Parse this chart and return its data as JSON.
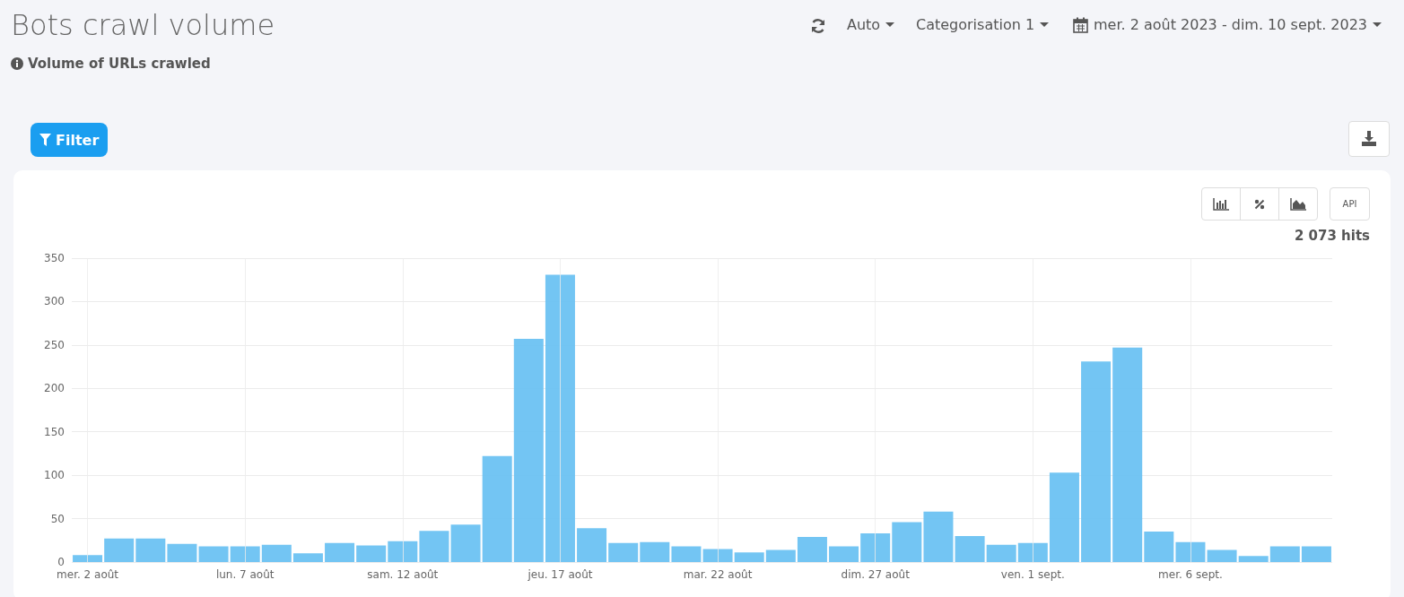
{
  "chart_data": {
    "type": "bar",
    "title": "Bots crawl volume",
    "subtitle": "Volume of URLs crawled",
    "annotations": [
      "Auto",
      "Categorisation 1",
      "mer. 2 août 2023 - dim. 10 sept. 2023",
      "Filter",
      "API",
      "2 073 hits"
    ],
    "categories": [
      "mer. 2 août",
      null,
      null,
      null,
      null,
      "lun. 7 août",
      null,
      null,
      null,
      null,
      "sam. 12 août",
      null,
      null,
      null,
      null,
      "jeu. 17 août",
      null,
      null,
      null,
      null,
      "mar. 22 août",
      null,
      null,
      null,
      null,
      "dim. 27 août",
      null,
      null,
      null,
      null,
      "ven. 1 sept.",
      null,
      null,
      null,
      null,
      "mer. 6 sept.",
      null,
      null,
      null,
      null
    ],
    "values": [
      8,
      27,
      27,
      21,
      18,
      18,
      20,
      10,
      22,
      19,
      24,
      36,
      43,
      122,
      257,
      331,
      39,
      22,
      23,
      18,
      15,
      11,
      14,
      29,
      18,
      33,
      46,
      58,
      30,
      20,
      22,
      103,
      231,
      247,
      35,
      23,
      14,
      7,
      18,
      18
    ],
    "color": "#6cc2f2",
    "ylim": [
      0,
      350
    ],
    "yticks": [
      0,
      50,
      100,
      150,
      200,
      250,
      300,
      350
    ],
    "grid": true
  }
}
